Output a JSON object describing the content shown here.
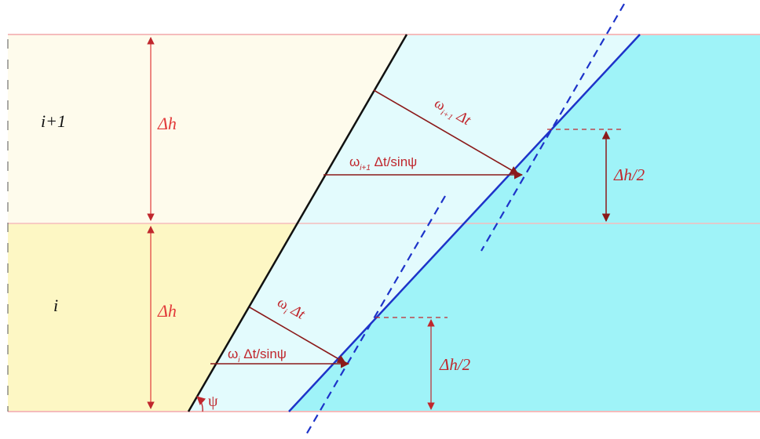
{
  "layers": [
    {
      "id": "upper",
      "index_label": "i+1",
      "thickness_label": "Δh",
      "color": "#fefbec"
    },
    {
      "id": "lower",
      "index_label": "i",
      "thickness_label": "Δh",
      "color": "#fdf7c4"
    }
  ],
  "labels": {
    "upper_advance": {
      "symbol": "ω",
      "sub": "i+1",
      "rest": " Δt"
    },
    "upper_horizontal": {
      "symbol": "ω",
      "sub": "i+1",
      "rest": " Δt/sinψ"
    },
    "lower_advance": {
      "symbol": "ω",
      "sub": "i",
      "rest": " Δt"
    },
    "lower_horizontal": {
      "symbol": "ω",
      "sub": "i",
      "rest": " Δt/sinψ"
    },
    "half_upper": "Δh/2",
    "half_lower": "Δh/2",
    "angle": "ψ"
  },
  "colors": {
    "swept_region": "#e3fbfd",
    "fluid_region": "#9ff3f8",
    "annotation": "#c0272d",
    "front_line": "#1d33c9",
    "initial_front": "#111111",
    "layer_border": "#f5bcbc"
  }
}
